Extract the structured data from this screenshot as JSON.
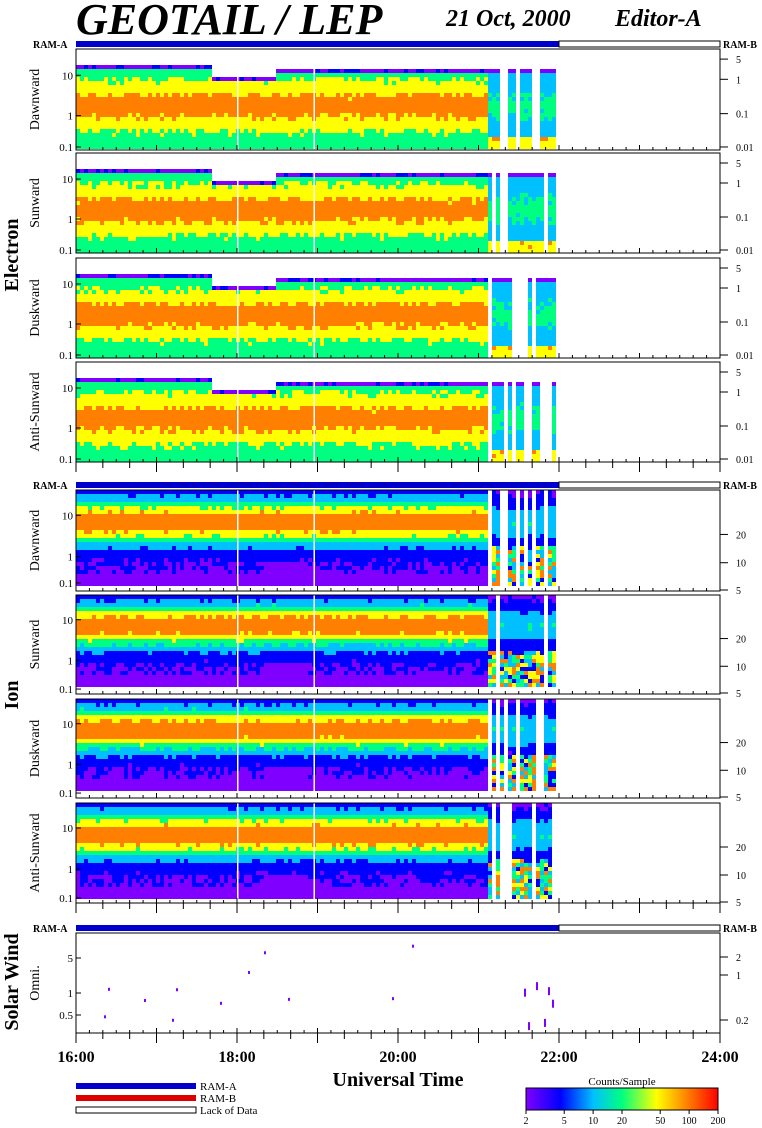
{
  "title": "GEOTAIL / LEP",
  "date": "21 Oct, 2000",
  "editor": "Editor-A",
  "ram_a": "RAM-A",
  "ram_b": "RAM-B",
  "groups": [
    {
      "label": "Electron"
    },
    {
      "label": "Ion"
    },
    {
      "label": "Solar Wind"
    }
  ],
  "panels": [
    {
      "label": "Dawnward",
      "group": 0,
      "left_ticks": [
        "10",
        "1",
        "0.1"
      ],
      "right_ticks": [
        "5",
        "1",
        "0.1",
        "0.01"
      ]
    },
    {
      "label": "Sunward",
      "group": 0,
      "left_ticks": [
        "10",
        "1",
        "0.1"
      ],
      "right_ticks": [
        "5",
        "1",
        "0.1",
        "0.01"
      ]
    },
    {
      "label": "Duskward",
      "group": 0,
      "left_ticks": [
        "10",
        "1",
        "0.1"
      ],
      "right_ticks": [
        "5",
        "1",
        "0.1",
        "0.01"
      ]
    },
    {
      "label": "Anti-Sunward",
      "group": 0,
      "left_ticks": [
        "10",
        "1",
        "0.1"
      ],
      "right_ticks": [
        "5",
        "1",
        "0.1",
        "0.01"
      ]
    },
    {
      "label": "Dawnward",
      "group": 1,
      "left_ticks": [
        "10",
        "1",
        "0.1"
      ],
      "right_ticks": [
        "20",
        "10",
        "5"
      ]
    },
    {
      "label": "Sunward",
      "group": 1,
      "left_ticks": [
        "10",
        "1",
        "0.1"
      ],
      "right_ticks": [
        "20",
        "10",
        "5"
      ]
    },
    {
      "label": "Duskward",
      "group": 1,
      "left_ticks": [
        "10",
        "1",
        "0.1"
      ],
      "right_ticks": [
        "20",
        "10",
        "5"
      ]
    },
    {
      "label": "Anti-Sunward",
      "group": 1,
      "left_ticks": [
        "10",
        "1",
        "0.1"
      ],
      "right_ticks": [
        "20",
        "10",
        "5"
      ]
    },
    {
      "label": "Omni.",
      "group": 2,
      "left_ticks": [
        "5",
        "1",
        "0.5"
      ],
      "right_ticks": [
        "2",
        "1",
        "0.2"
      ]
    }
  ],
  "chart_data": {
    "type": "heatmap",
    "x_ticks": [
      "16:00",
      "18:00",
      "20:00",
      "22:00",
      "24:00"
    ],
    "x_range_hours": [
      16,
      24
    ],
    "data_end_hour": 22.0,
    "xlabel": "Universal Time",
    "legend": [
      {
        "label": "RAM-A",
        "color": "#0000cc"
      },
      {
        "label": "RAM-B",
        "color": "#dd0000"
      },
      {
        "label": "Lack of Data",
        "color": "#ffffff"
      }
    ],
    "colorbar": {
      "title": "Counts/Sample",
      "ticks": [
        "2",
        "5",
        "10",
        "20",
        "50",
        "100",
        "200"
      ],
      "range": [
        2,
        200
      ],
      "colors": [
        "#8000ff",
        "#0000ff",
        "#00c0ff",
        "#00ff80",
        "#ffff00",
        "#ff8000",
        "#ff0000"
      ]
    }
  }
}
